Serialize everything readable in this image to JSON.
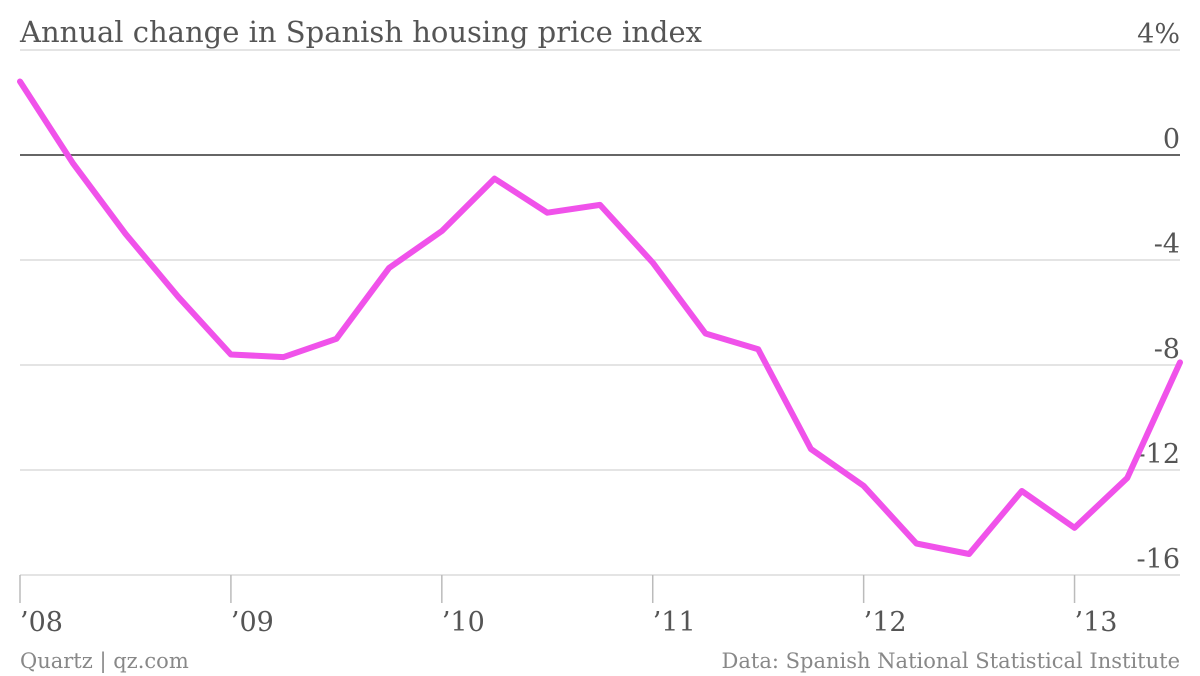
{
  "chart_data": {
    "type": "line",
    "title": "Annual change in Spanish housing price index",
    "x_tick_labels": [
      "’08",
      "’09",
      "’10",
      "’11",
      "’12",
      "’13"
    ],
    "y_tick_labels": [
      "4%",
      "0",
      "-4",
      "-8",
      "-12",
      "-16"
    ],
    "y_ticks": [
      4,
      0,
      -4,
      -8,
      -12,
      -16
    ],
    "ylim": [
      -16,
      4
    ],
    "xlim": [
      2008.0,
      2013.5
    ],
    "grid": true,
    "line_color": "#f052ea",
    "series": [
      {
        "x": [
          2008.0,
          2008.25,
          2008.5,
          2008.75,
          2009.0,
          2009.25,
          2009.5,
          2009.75,
          2010.0,
          2010.25,
          2010.5,
          2010.75,
          2011.0,
          2011.25,
          2011.5,
          2011.75,
          2012.0,
          2012.25,
          2012.5,
          2012.75,
          2013.0,
          2013.25,
          2013.5
        ],
        "values": [
          2.8,
          -0.3,
          -3.0,
          -5.4,
          -7.6,
          -7.7,
          -7.0,
          -4.3,
          -2.9,
          -0.9,
          -2.2,
          -1.9,
          -4.1,
          -6.8,
          -7.4,
          -11.2,
          -12.6,
          -14.8,
          -15.2,
          -12.8,
          -14.2,
          -12.3,
          -7.9
        ]
      }
    ]
  },
  "footer": {
    "left": "Quartz | qz.com",
    "right": "Data: Spanish National Statistical Institute"
  }
}
